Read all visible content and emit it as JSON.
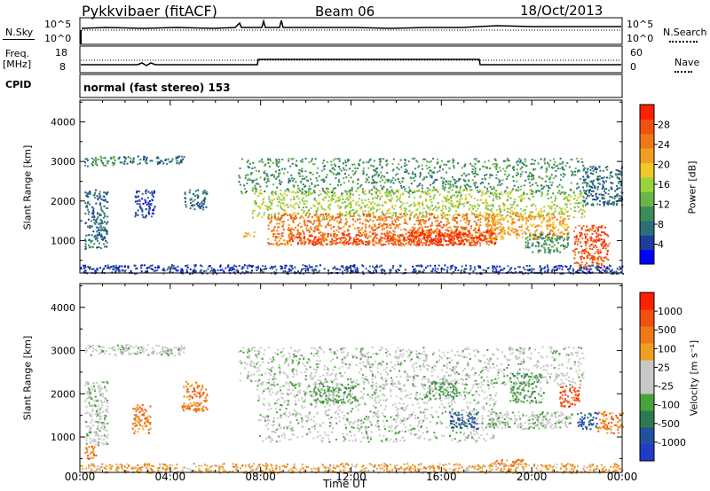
{
  "header": {
    "station": "Pykkvibaer (fitACF)",
    "beam": "Beam 06",
    "date": "18/Oct/2013"
  },
  "strip_nsky": {
    "left_label": "N.Sky",
    "left_ticks": [
      "10^5",
      "10^0"
    ],
    "right_ticks": [
      "10^5",
      "10^0"
    ],
    "right_label": "N.Search",
    "right_legend_line": "dotted"
  },
  "strip_freq": {
    "left_label_line1": "Freq.",
    "left_label_line2": "[MHz]",
    "left_ticks": [
      "18",
      "8"
    ],
    "right_ticks": [
      "60",
      "0"
    ],
    "right_label": "Nave",
    "right_legend_line": "dotted"
  },
  "cpid": {
    "label": "CPID",
    "mode": "normal (fast stereo) 153"
  },
  "x_axis": {
    "label": "Time UT",
    "ticks": [
      "00:00",
      "04:00",
      "08:00",
      "12:00",
      "16:00",
      "20:00",
      "00:00"
    ]
  },
  "chart_data": [
    {
      "type": "heatmap",
      "panel": "power",
      "ylabel": "Slant Range [km]",
      "yticks": [
        1000,
        2000,
        3000,
        4000
      ],
      "ylim": [
        180,
        4550
      ],
      "xlim_hours": [
        0,
        24
      ],
      "colorbar": {
        "label": "Power [dB]",
        "ticks": [
          "28",
          "24",
          "20",
          "16",
          "12",
          "8",
          "4"
        ],
        "colors": [
          "#0000ff",
          "#1e3c9b",
          "#2e6e7a",
          "#3c8c5a",
          "#6ab44a",
          "#9ad23c",
          "#f0c828",
          "#f0a020",
          "#f07818",
          "#f05010",
          "#ff2000"
        ]
      },
      "bands": [
        {
          "x0": 0.2,
          "x1": 1.6,
          "y0": 2900,
          "y1": 3150,
          "level": 3
        },
        {
          "x0": 1.6,
          "x1": 4.6,
          "y0": 2950,
          "y1": 3150,
          "level": 2
        },
        {
          "x0": 0.2,
          "x1": 1.2,
          "y0": 800,
          "y1": 2300,
          "level": 2
        },
        {
          "x0": 2.4,
          "x1": 3.3,
          "y0": 1600,
          "y1": 2300,
          "level": 1
        },
        {
          "x0": 4.6,
          "x1": 5.6,
          "y0": 1800,
          "y1": 2300,
          "level": 2
        },
        {
          "x0": 7.2,
          "x1": 7.7,
          "y0": 1100,
          "y1": 1250,
          "level": 6
        },
        {
          "x0": 7.0,
          "x1": 22.3,
          "y0": 2200,
          "y1": 3100,
          "level": 3
        },
        {
          "x0": 7.6,
          "x1": 22.3,
          "y0": 1600,
          "y1": 2300,
          "level": 5
        },
        {
          "x0": 8.3,
          "x1": 18.4,
          "y0": 900,
          "y1": 1700,
          "level": 8
        },
        {
          "x0": 9.2,
          "x1": 17.0,
          "y0": 900,
          "y1": 1200,
          "level": 9
        },
        {
          "x0": 14.5,
          "x1": 18.4,
          "y0": 900,
          "y1": 1300,
          "level": 10
        },
        {
          "x0": 18.0,
          "x1": 21.6,
          "y0": 1050,
          "y1": 1700,
          "level": 7
        },
        {
          "x0": 19.7,
          "x1": 21.6,
          "y0": 700,
          "y1": 1200,
          "level": 3
        },
        {
          "x0": 21.8,
          "x1": 23.4,
          "y0": 300,
          "y1": 1400,
          "level": 9
        },
        {
          "x0": 22.2,
          "x1": 24.0,
          "y0": 1900,
          "y1": 2900,
          "level": 2
        },
        {
          "x0": 0.0,
          "x1": 24.0,
          "y0": 180,
          "y1": 400,
          "level": 1
        }
      ]
    },
    {
      "type": "heatmap",
      "panel": "velocity",
      "ylabel": "Slant Range [km]",
      "yticks": [
        1000,
        2000,
        3000,
        4000
      ],
      "ylim": [
        180,
        4550
      ],
      "xlim_hours": [
        0,
        24
      ],
      "colorbar": {
        "label": "Velocity [m s⁻¹]",
        "ticks": [
          "1000",
          "500",
          "100",
          "25",
          "-25",
          "-100",
          "-500",
          "-1000"
        ],
        "colors": [
          "#1e3cc8",
          "#2050a0",
          "#2e7a50",
          "#4aa23c",
          "#c8c8c8",
          "#c8c8c8",
          "#f0a020",
          "#f07818",
          "#f05010",
          "#ff2000"
        ]
      },
      "bands": [
        {
          "x0": 0.2,
          "x1": 4.6,
          "y0": 2900,
          "y1": 3150,
          "level": 4
        },
        {
          "x0": 0.2,
          "x1": 1.2,
          "y0": 800,
          "y1": 2300,
          "level": 4
        },
        {
          "x0": 0.2,
          "x1": 0.8,
          "y0": 500,
          "y1": 800,
          "level": 7
        },
        {
          "x0": 2.3,
          "x1": 3.1,
          "y0": 1100,
          "y1": 1800,
          "level": 7
        },
        {
          "x0": 4.5,
          "x1": 5.6,
          "y0": 1600,
          "y1": 2300,
          "level": 7
        },
        {
          "x0": 7.0,
          "x1": 22.3,
          "y0": 2200,
          "y1": 3100,
          "level": 4
        },
        {
          "x0": 7.8,
          "x1": 18.4,
          "y0": 900,
          "y1": 2300,
          "level": 4
        },
        {
          "x0": 10.2,
          "x1": 12.2,
          "y0": 1800,
          "y1": 2200,
          "level": 3
        },
        {
          "x0": 15.2,
          "x1": 16.7,
          "y0": 1900,
          "y1": 2300,
          "level": 3
        },
        {
          "x0": 16.3,
          "x1": 17.6,
          "y0": 1200,
          "y1": 1600,
          "level": 1
        },
        {
          "x0": 18.0,
          "x1": 21.8,
          "y0": 1200,
          "y1": 1600,
          "level": 4
        },
        {
          "x0": 19.0,
          "x1": 20.5,
          "y0": 1800,
          "y1": 2500,
          "level": 3
        },
        {
          "x0": 18.3,
          "x1": 19.6,
          "y0": 350,
          "y1": 500,
          "level": 7
        },
        {
          "x0": 21.2,
          "x1": 22.1,
          "y0": 1700,
          "y1": 2200,
          "level": 8
        },
        {
          "x0": 22.0,
          "x1": 22.9,
          "y0": 1200,
          "y1": 1600,
          "level": 1
        },
        {
          "x0": 22.9,
          "x1": 24.0,
          "y0": 1100,
          "y1": 1600,
          "level": 7
        },
        {
          "x0": 0.0,
          "x1": 24.0,
          "y0": 180,
          "y1": 400,
          "level": 6
        }
      ]
    }
  ]
}
